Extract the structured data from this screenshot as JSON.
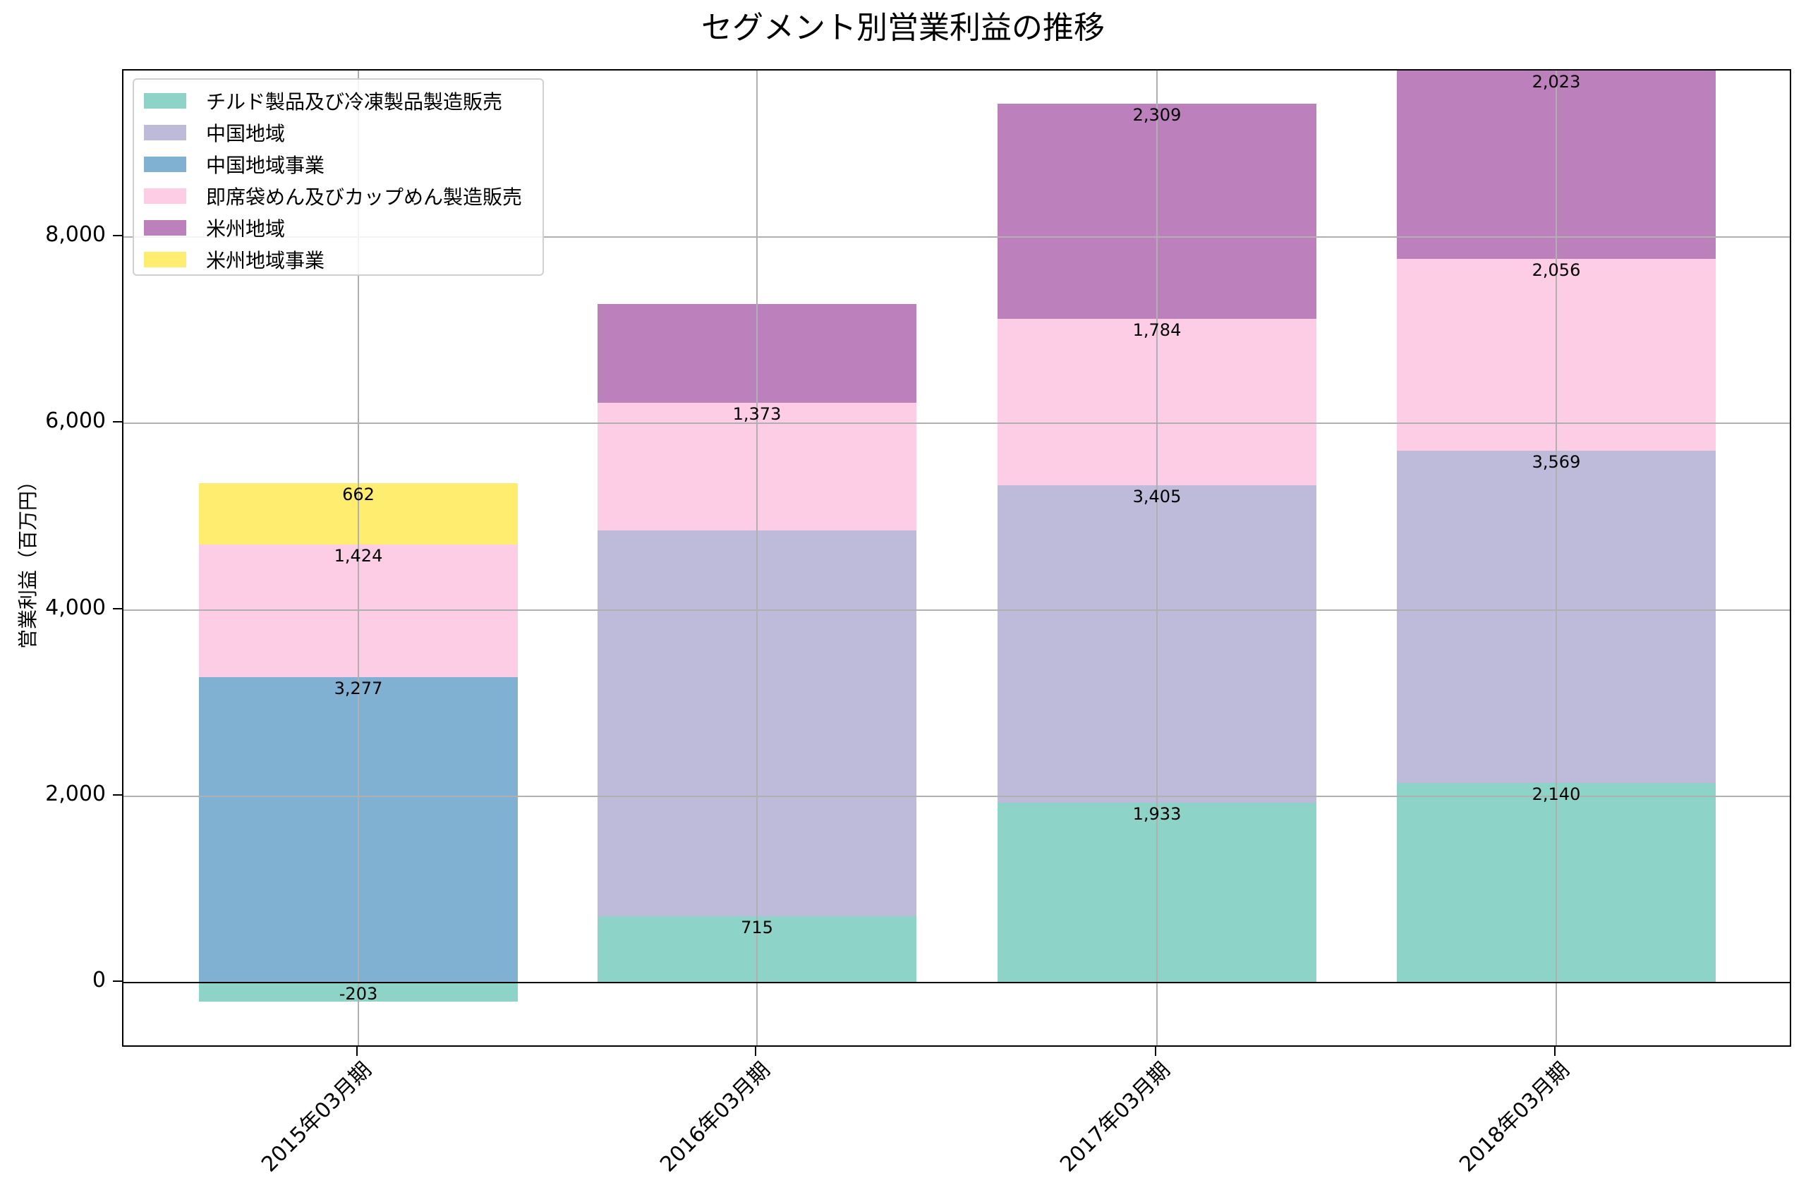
{
  "chart_data": {
    "type": "bar",
    "stacked": true,
    "title": "セグメント別営業利益の推移",
    "xlabel": "",
    "ylabel": "営業利益（百万円）",
    "ylim": [
      -704,
      9788
    ],
    "yticks": [
      0,
      2000,
      4000,
      6000,
      8000
    ],
    "ytick_labels": [
      "0",
      "2,000",
      "4,000",
      "6,000",
      "8,000"
    ],
    "grid": true,
    "legend_position": "upper left",
    "categories": [
      "2015年03月期",
      "2016年03月期",
      "2017年03月期",
      "2018年03月期"
    ],
    "series": [
      {
        "name": "チルド製品及び冷凍製品製造販売",
        "color": "#8dd3c7",
        "values": [
          -203,
          715,
          1933,
          2140
        ],
        "labels": [
          "-203",
          "715",
          "1,933",
          "2,140"
        ]
      },
      {
        "name": "中国地域",
        "color": "#bebada",
        "values": [
          null,
          4137,
          3405,
          3569
        ],
        "labels": [
          null,
          null,
          "3,405",
          "3,569"
        ]
      },
      {
        "name": "中国地域事業",
        "color": "#80b1d3",
        "values": [
          3277,
          null,
          null,
          null
        ],
        "labels": [
          "3,277",
          null,
          null,
          null
        ]
      },
      {
        "name": "即席袋めん及びカップめん製造販売",
        "color": "#fccde5",
        "values": [
          1424,
          1373,
          1784,
          2056
        ],
        "labels": [
          "1,424",
          "1,373",
          "1,784",
          "2,056"
        ]
      },
      {
        "name": "米州地域",
        "color": "#bc80bd",
        "values": [
          null,
          1059,
          2309,
          2023
        ],
        "labels": [
          null,
          null,
          "2,309",
          "2,023"
        ]
      },
      {
        "name": "米州地域事業",
        "color": "#ffed6f",
        "values": [
          662,
          null,
          null,
          null
        ],
        "labels": [
          "662",
          null,
          null,
          null
        ]
      }
    ]
  }
}
